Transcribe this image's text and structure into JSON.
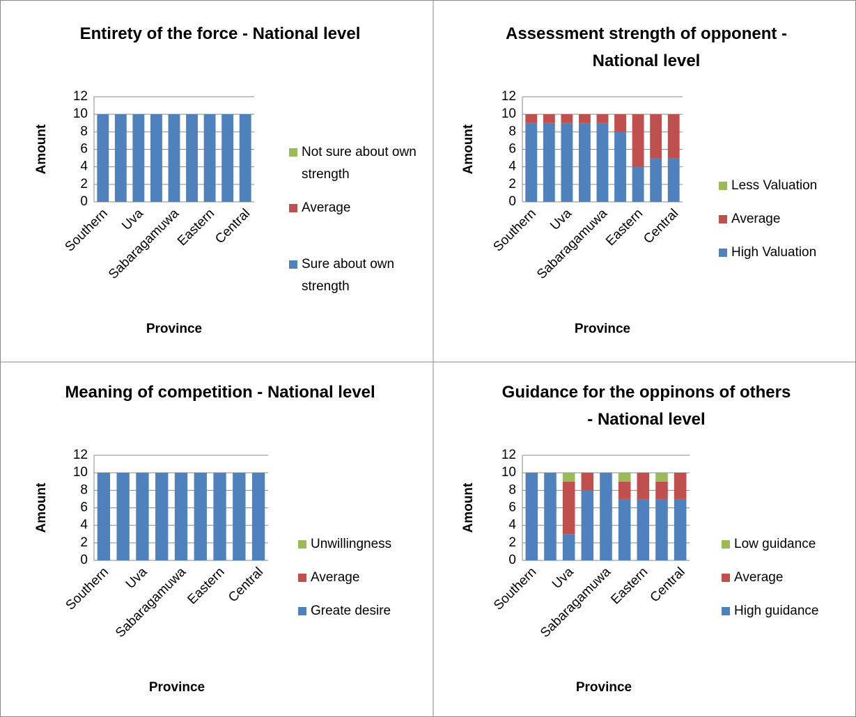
{
  "chart_data": [
    {
      "type": "stacked_bar",
      "title": "Entirety  of the force - National level",
      "x_label": "Province",
      "y_label": "Amount",
      "categories": [
        "Southern",
        null,
        "Uva",
        null,
        "Sabaragamuwa",
        null,
        "Eastern",
        null,
        "Central"
      ],
      "series": [
        {
          "name": "Sure about own strength",
          "color": "#4f81bd",
          "values": [
            10,
            10,
            10,
            10,
            10,
            10,
            10,
            10,
            10
          ]
        },
        {
          "name": "Average",
          "color": "#c0504d",
          "values": [
            0,
            0,
            0,
            0,
            0,
            0,
            0,
            0,
            0
          ]
        },
        {
          "name": "Not sure about own strength",
          "color": "#9bbb59",
          "values": [
            0,
            0,
            0,
            0,
            0,
            0,
            0,
            0,
            0
          ]
        }
      ],
      "ylim": [
        0,
        12
      ],
      "yticks": [
        0,
        2,
        4,
        6,
        8,
        10,
        12
      ],
      "grid": true,
      "legend": "right"
    },
    {
      "type": "stacked_bar",
      "title": "Assessment strength of opponent - National level",
      "x_label": "Province",
      "y_label": "Amount",
      "categories": [
        "Southern",
        null,
        "Uva",
        null,
        "Sabaragamuwa",
        null,
        "Eastern",
        null,
        "Central"
      ],
      "series": [
        {
          "name": "High Valuation",
          "color": "#4f81bd",
          "values": [
            9,
            9,
            9,
            9,
            9,
            8,
            4,
            5,
            5
          ]
        },
        {
          "name": "Average",
          "color": "#c0504d",
          "values": [
            1,
            1,
            1,
            1,
            1,
            2,
            6,
            5,
            5
          ]
        },
        {
          "name": "Less Valuation",
          "color": "#9bbb59",
          "values": [
            0,
            0,
            0,
            0,
            0,
            0,
            0,
            0,
            0
          ]
        }
      ],
      "ylim": [
        0,
        12
      ],
      "yticks": [
        0,
        2,
        4,
        6,
        8,
        10,
        12
      ],
      "grid": true,
      "legend": "right"
    },
    {
      "type": "stacked_bar",
      "title": "Meaning of competition - National level",
      "x_label": "Province",
      "y_label": "Amount",
      "categories": [
        "Southern",
        null,
        "Uva",
        null,
        "Sabaragamuwa",
        null,
        "Eastern",
        null,
        "Central"
      ],
      "series": [
        {
          "name": "Greate desire",
          "color": "#4f81bd",
          "values": [
            10,
            10,
            10,
            10,
            10,
            10,
            10,
            10,
            10
          ]
        },
        {
          "name": "Average",
          "color": "#c0504d",
          "values": [
            0,
            0,
            0,
            0,
            0,
            0,
            0,
            0,
            0
          ]
        },
        {
          "name": "Unwillingness",
          "color": "#9bbb59",
          "values": [
            0,
            0,
            0,
            0,
            0,
            0,
            0,
            0,
            0
          ]
        }
      ],
      "ylim": [
        0,
        12
      ],
      "yticks": [
        0,
        2,
        4,
        6,
        8,
        10,
        12
      ],
      "grid": true,
      "legend": "right"
    },
    {
      "type": "stacked_bar",
      "title": "Guidance for the oppinons of others - National level",
      "x_label": "Province",
      "y_label": "Amount",
      "categories": [
        "Southern",
        null,
        "Uva",
        null,
        "Sabaragamuwa",
        null,
        "Eastern",
        null,
        "Central"
      ],
      "series": [
        {
          "name": "High guidance",
          "color": "#4f81bd",
          "values": [
            10,
            10,
            3,
            8,
            10,
            7,
            7,
            7,
            7
          ]
        },
        {
          "name": "Average",
          "color": "#c0504d",
          "values": [
            0,
            0,
            6,
            2,
            0,
            2,
            3,
            2,
            3
          ]
        },
        {
          "name": "Low guidance",
          "color": "#9bbb59",
          "values": [
            0,
            0,
            1,
            0,
            0,
            1,
            0,
            1,
            0
          ]
        }
      ],
      "ylim": [
        0,
        12
      ],
      "yticks": [
        0,
        2,
        4,
        6,
        8,
        10,
        12
      ],
      "grid": true,
      "legend": "right"
    }
  ]
}
